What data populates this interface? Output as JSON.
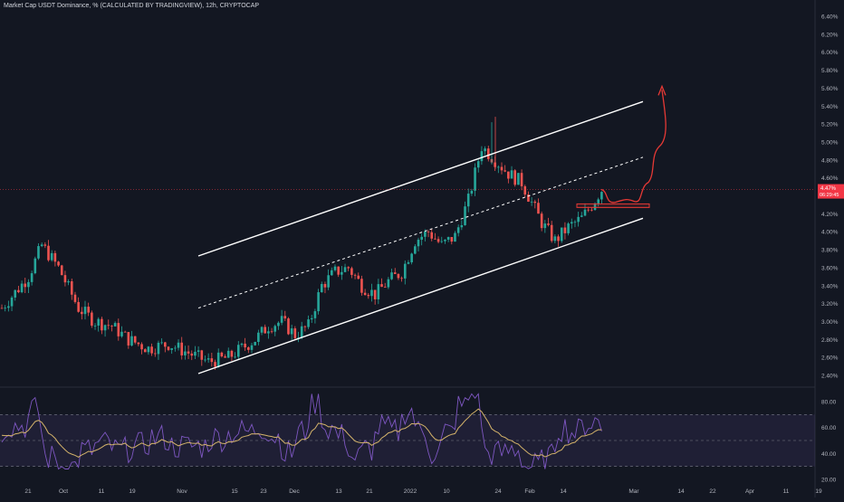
{
  "header": {
    "title": "Market Cap USDT Dominance, % (CALCULATED BY TRADINGVIEW), 12h, CRYPTOCAP"
  },
  "colors": {
    "background": "#131722",
    "up_candle": "#26a69a",
    "down_candle": "#ef5350",
    "channel_line": "#ffffff",
    "projection": "#e53935",
    "rsi_line": "#7e57c2",
    "rsi_ma": "#d4b36a",
    "price_marker": "#f23645",
    "axis_text": "#b2b5be"
  },
  "chart_data": [
    {
      "type": "candlestick",
      "name": "price",
      "y_axis_ticks": [
        "6.40%",
        "6.20%",
        "6.00%",
        "5.80%",
        "5.60%",
        "5.40%",
        "5.20%",
        "5.00%",
        "4.80%",
        "4.60%",
        "4.40%",
        "4.20%",
        "4.00%",
        "3.80%",
        "3.60%",
        "3.40%",
        "3.20%",
        "3.00%",
        "2.80%",
        "2.60%",
        "2.40%"
      ],
      "ylim": [
        2.3,
        6.45
      ],
      "x_axis_ticks": [
        "21",
        "Oct",
        "11",
        "19",
        "Nov",
        "15",
        "23",
        "Dec",
        "13",
        "21",
        "2022",
        "10",
        "24",
        "Feb",
        "14",
        "Mar",
        "14",
        "22",
        "Apr",
        "11",
        "19"
      ],
      "last_value_label": "4.47%",
      "countdown_label": "06:29:45",
      "approx_close_path": [
        [
          0,
          3.15
        ],
        [
          8,
          3.5
        ],
        [
          12,
          3.85
        ],
        [
          17,
          3.6
        ],
        [
          23,
          3.15
        ],
        [
          28,
          3.0
        ],
        [
          33,
          2.95
        ],
        [
          38,
          2.8
        ],
        [
          44,
          2.7
        ],
        [
          50,
          2.75
        ],
        [
          56,
          2.65
        ],
        [
          62,
          2.55
        ],
        [
          68,
          2.6
        ],
        [
          72,
          2.7
        ],
        [
          76,
          2.8
        ],
        [
          80,
          2.95
        ],
        [
          84,
          3.0
        ],
        [
          88,
          2.85
        ],
        [
          92,
          2.95
        ],
        [
          96,
          3.4
        ],
        [
          100,
          3.55
        ],
        [
          104,
          3.6
        ],
        [
          108,
          3.4
        ],
        [
          112,
          3.3
        ],
        [
          116,
          3.45
        ],
        [
          120,
          3.55
        ],
        [
          124,
          3.9
        ],
        [
          128,
          4.0
        ],
        [
          132,
          3.85
        ],
        [
          136,
          3.95
        ],
        [
          140,
          4.35
        ],
        [
          144,
          4.95
        ],
        [
          148,
          4.8
        ],
        [
          152,
          4.65
        ],
        [
          156,
          4.55
        ],
        [
          158,
          4.4
        ],
        [
          162,
          4.1
        ],
        [
          166,
          3.9
        ],
        [
          170,
          4.05
        ],
        [
          174,
          4.15
        ],
        [
          177,
          4.3
        ],
        [
          180,
          4.47
        ]
      ],
      "channel": {
        "upper": [
          [
            4.48,
            3.73
          ],
          [
            11.5,
            5.45
          ]
        ],
        "middle": [
          [
            4.48,
            3.15
          ],
          [
            11.5,
            4.83
          ]
        ],
        "lower": [
          [
            4.48,
            2.42
          ],
          [
            11.5,
            4.15
          ]
        ]
      },
      "support_zone": [
        4.27,
        4.31
      ],
      "projected_path": [
        [
          4.47,
          4.47
        ],
        [
          4.3,
          4.36
        ],
        [
          4.4,
          4.9
        ],
        [
          5.55,
          5.6
        ]
      ]
    },
    {
      "type": "line",
      "name": "rsi",
      "y_axis_ticks": [
        "80.00",
        "60.00",
        "40.00",
        "20.00"
      ],
      "ylim": [
        18,
        88
      ],
      "band": [
        30,
        70
      ],
      "midline": 50
    }
  ]
}
